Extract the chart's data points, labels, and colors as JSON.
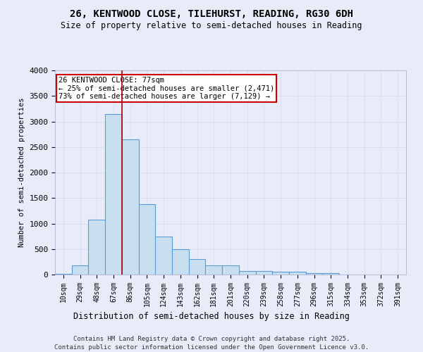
{
  "title1": "26, KENTWOOD CLOSE, TILEHURST, READING, RG30 6DH",
  "title2": "Size of property relative to semi-detached houses in Reading",
  "xlabel": "Distribution of semi-detached houses by size in Reading",
  "ylabel": "Number of semi-detached properties",
  "categories": [
    "10sqm",
    "29sqm",
    "48sqm",
    "67sqm",
    "86sqm",
    "105sqm",
    "124sqm",
    "143sqm",
    "162sqm",
    "181sqm",
    "201sqm",
    "220sqm",
    "239sqm",
    "258sqm",
    "277sqm",
    "296sqm",
    "315sqm",
    "334sqm",
    "353sqm",
    "372sqm",
    "391sqm"
  ],
  "values": [
    20,
    175,
    1075,
    3150,
    2650,
    1375,
    750,
    500,
    310,
    175,
    175,
    75,
    75,
    50,
    50,
    25,
    25,
    5,
    5,
    5,
    5
  ],
  "bar_color": "#c8dff0",
  "bar_edge_color": "#5b9bd5",
  "vline_x": 3.5,
  "vline_color": "#aa0000",
  "annotation_text": "26 KENTWOOD CLOSE: 77sqm\n← 25% of semi-detached houses are smaller (2,471)\n73% of semi-detached houses are larger (7,129) →",
  "annotation_box_color": "#ffffff",
  "annotation_box_edge": "#cc0000",
  "bg_color": "#e8ecf8",
  "grid_color": "#d8dff0",
  "ylim": [
    0,
    4000
  ],
  "yticks": [
    0,
    500,
    1000,
    1500,
    2000,
    2500,
    3000,
    3500,
    4000
  ],
  "footer1": "Contains HM Land Registry data © Crown copyright and database right 2025.",
  "footer2": "Contains public sector information licensed under the Open Government Licence v3.0."
}
